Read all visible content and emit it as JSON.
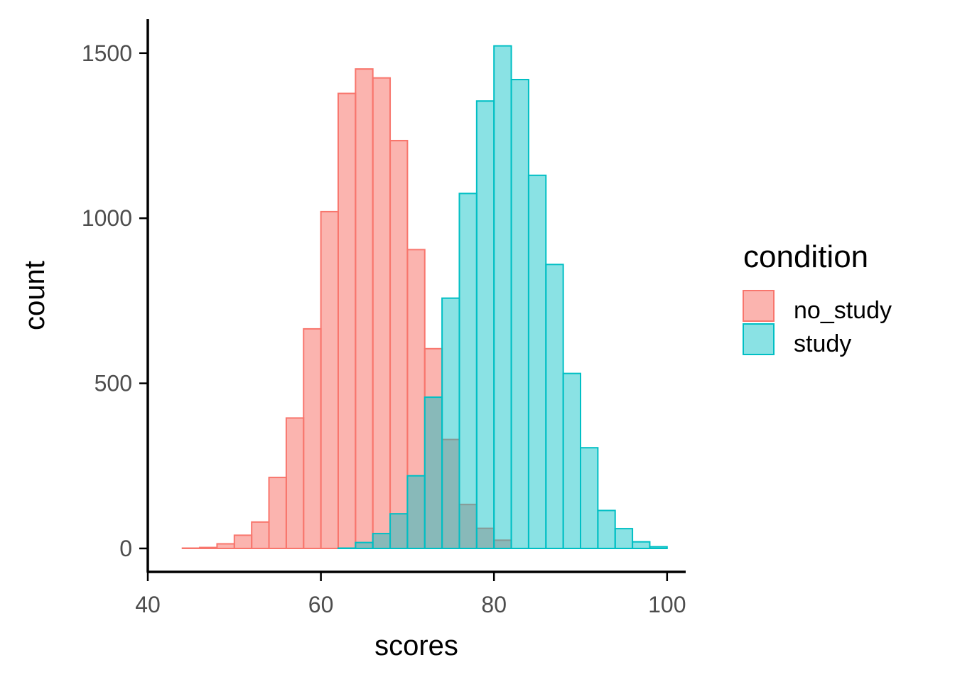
{
  "chart_data": {
    "type": "bar",
    "subtype": "histogram",
    "xlabel": "scores",
    "ylabel": "count",
    "xlim": [
      40,
      102
    ],
    "ylim": [
      -70,
      1600
    ],
    "x_ticks": [
      40,
      60,
      80,
      100
    ],
    "y_ticks": [
      0,
      500,
      1000,
      1500
    ],
    "bin_width": 2,
    "grid": false,
    "legend_title": "condition",
    "legend_position": "right",
    "series": [
      {
        "name": "no_study",
        "fill": "#f8766d",
        "fill_opacity": 0.55,
        "stroke": "#f8766d",
        "bin_centers": [
          43,
          45,
          47,
          49,
          51,
          53,
          55,
          57,
          59,
          61,
          63,
          65,
          67,
          69,
          71,
          73,
          75,
          77,
          79,
          81
        ],
        "values": [
          0,
          1,
          3,
          14,
          40,
          80,
          215,
          395,
          665,
          1020,
          1378,
          1452,
          1425,
          1235,
          905,
          605,
          330,
          133,
          61,
          25
        ]
      },
      {
        "name": "study",
        "fill": "#00bfc4",
        "fill_opacity": 0.46,
        "stroke": "#00bfc4",
        "bin_centers": [
          43,
          45,
          47,
          49,
          51,
          53,
          55,
          57,
          59,
          61,
          63,
          65,
          67,
          69,
          71,
          73,
          75,
          77,
          79,
          81,
          83,
          85,
          87,
          89,
          91,
          93,
          95,
          97,
          99
        ],
        "values": [
          0,
          0,
          0,
          0,
          0,
          0,
          0,
          0,
          0,
          0,
          1,
          18,
          45,
          105,
          220,
          458,
          758,
          1075,
          1355,
          1522,
          1420,
          1130,
          860,
          530,
          305,
          115,
          60,
          20,
          5
        ]
      }
    ]
  }
}
